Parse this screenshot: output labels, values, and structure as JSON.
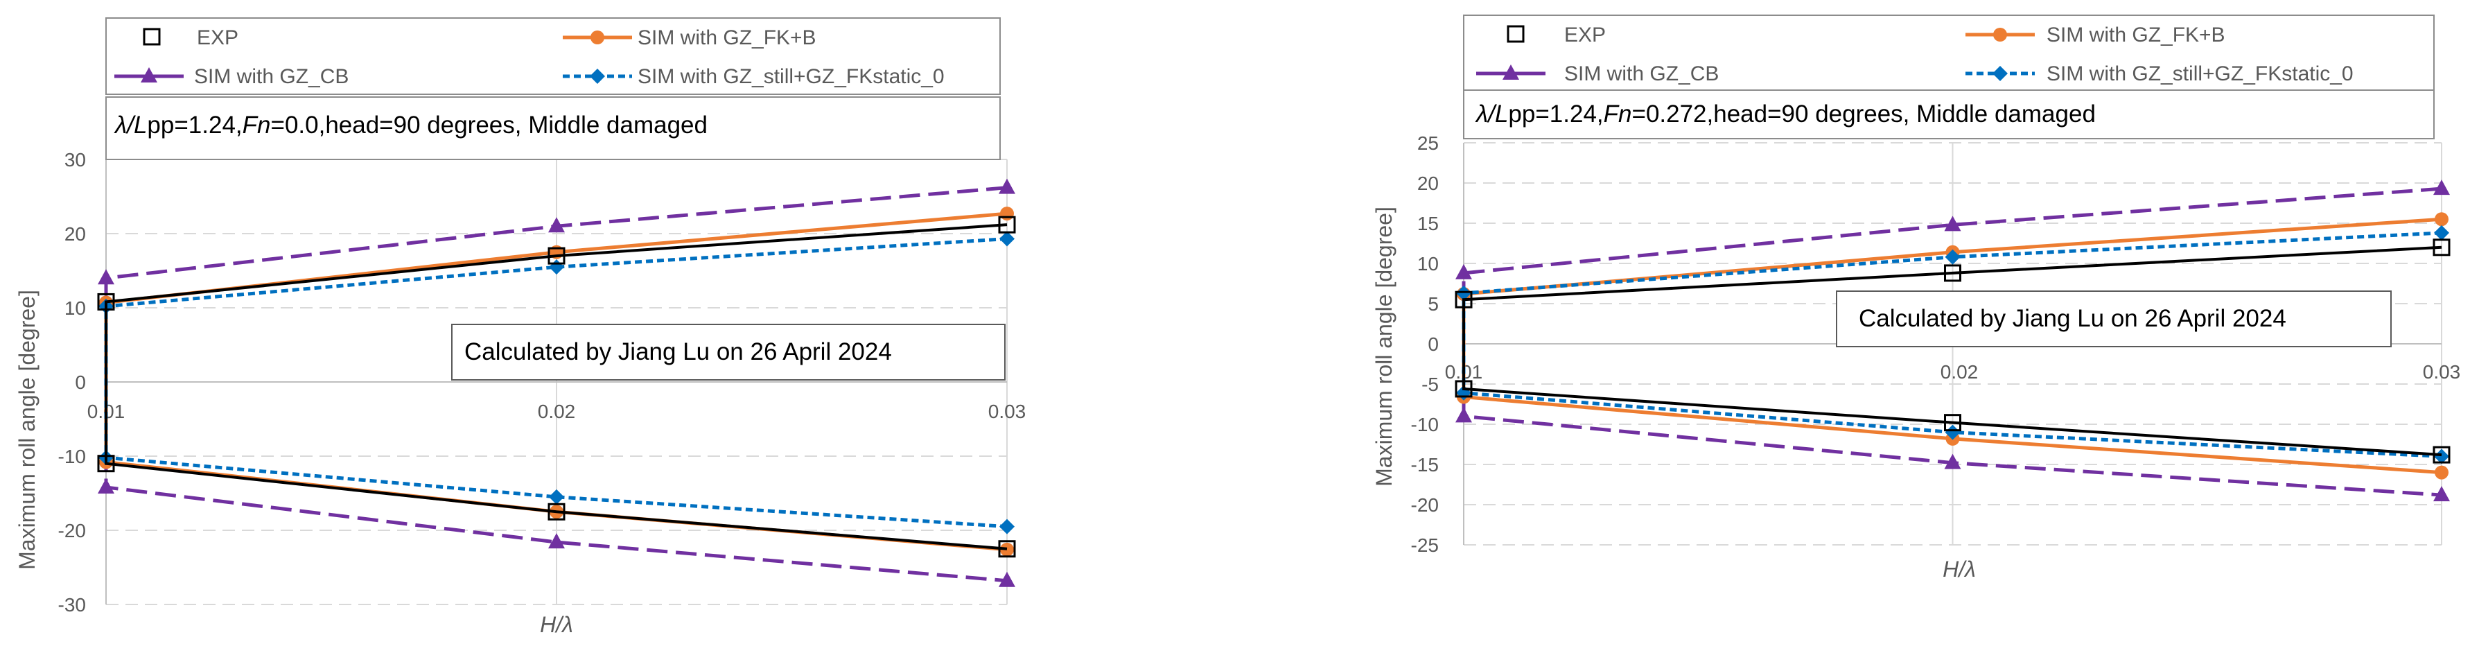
{
  "chart_data": [
    {
      "type": "line",
      "title_parts": {
        "lambda": "λ/",
        "L": "L",
        "pp": "pp=1.24,",
        "Fn": "Fn",
        "rest": "=0.0,head=90 degrees, Middle damaged"
      },
      "annotation": "Calculated by Jiang Lu on 26 April 2024",
      "xlabel": "H/λ",
      "ylabel": "Maximum roll angle [degree]",
      "xlim": [
        0.01,
        0.03
      ],
      "ylim": [
        -30,
        30
      ],
      "x_ticks": [
        "0.01",
        "0.02",
        "0.03"
      ],
      "y_ticks": [
        "30",
        "20",
        "10",
        "0",
        "-10",
        "-20",
        "-30"
      ],
      "legend": [
        "EXP",
        "SIM with GZ_FK+B",
        "SIM with GZ_CB",
        "SIM with GZ_still+GZ_FKstatic_0"
      ],
      "series": [
        {
          "name": "EXP",
          "x": [
            0.01,
            0.02,
            0.03
          ],
          "upper": [
            10.8,
            17.0,
            21.2
          ],
          "lower": [
            -11.0,
            -17.5,
            -22.5
          ]
        },
        {
          "name": "SIM with GZ_FK+B",
          "x": [
            0.01,
            0.02,
            0.03
          ],
          "upper": [
            10.7,
            17.5,
            22.7
          ],
          "lower": [
            -10.8,
            -17.5,
            -22.6
          ]
        },
        {
          "name": "SIM with GZ_CB",
          "x": [
            0.01,
            0.02,
            0.03
          ],
          "upper": [
            14.0,
            21.0,
            26.2
          ],
          "lower": [
            -14.2,
            -21.6,
            -26.8
          ]
        },
        {
          "name": "SIM with GZ_still+GZ_FKstatic_0",
          "x": [
            0.01,
            0.02,
            0.03
          ],
          "upper": [
            10.2,
            15.5,
            19.3
          ],
          "lower": [
            -10.2,
            -15.5,
            -19.5
          ]
        }
      ]
    },
    {
      "type": "line",
      "title_parts": {
        "lambda": "λ/",
        "L": "L",
        "pp": "pp=1.24,",
        "Fn": "Fn",
        "rest": "=0.272,head=90 degrees, Middle damaged"
      },
      "annotation": "Calculated by Jiang Lu on 26 April 2024",
      "xlabel": "H/λ",
      "ylabel": "Maximum roll angle [degree]",
      "xlim": [
        0.01,
        0.03
      ],
      "ylim": [
        -25,
        25
      ],
      "x_ticks": [
        "0.01",
        "0.02",
        "0.03"
      ],
      "y_ticks": [
        "25",
        "20",
        "15",
        "10",
        "5",
        "0",
        "-5",
        "-10",
        "-15",
        "-20",
        "-25"
      ],
      "legend": [
        "EXP",
        "SIM with GZ_FK+B",
        "SIM with GZ_CB",
        "SIM with GZ_still+GZ_FKstatic_0"
      ],
      "series": [
        {
          "name": "EXP",
          "x": [
            0.01,
            0.02,
            0.03
          ],
          "upper": [
            5.5,
            8.8,
            12.0
          ],
          "lower": [
            -5.6,
            -9.8,
            -13.8
          ]
        },
        {
          "name": "SIM with GZ_FK+B",
          "x": [
            0.01,
            0.02,
            0.03
          ],
          "upper": [
            6.2,
            11.4,
            15.5
          ],
          "lower": [
            -6.6,
            -11.8,
            -16.0
          ]
        },
        {
          "name": "SIM with GZ_CB",
          "x": [
            0.01,
            0.02,
            0.03
          ],
          "upper": [
            8.8,
            14.8,
            19.3
          ],
          "lower": [
            -9.0,
            -14.8,
            -18.8
          ]
        },
        {
          "name": "SIM with GZ_still+GZ_FKstatic_0",
          "x": [
            0.01,
            0.02,
            0.03
          ],
          "upper": [
            6.3,
            10.8,
            13.8
          ],
          "lower": [
            -6.1,
            -11.0,
            -14.0
          ]
        }
      ]
    }
  ],
  "colors": {
    "exp": "#000000",
    "fkb": "#ED7D31",
    "cb": "#7030A0",
    "still": "#0070C0",
    "grid": "#D9D9D9",
    "axis": "#BFBFBF",
    "text": "#595959"
  }
}
